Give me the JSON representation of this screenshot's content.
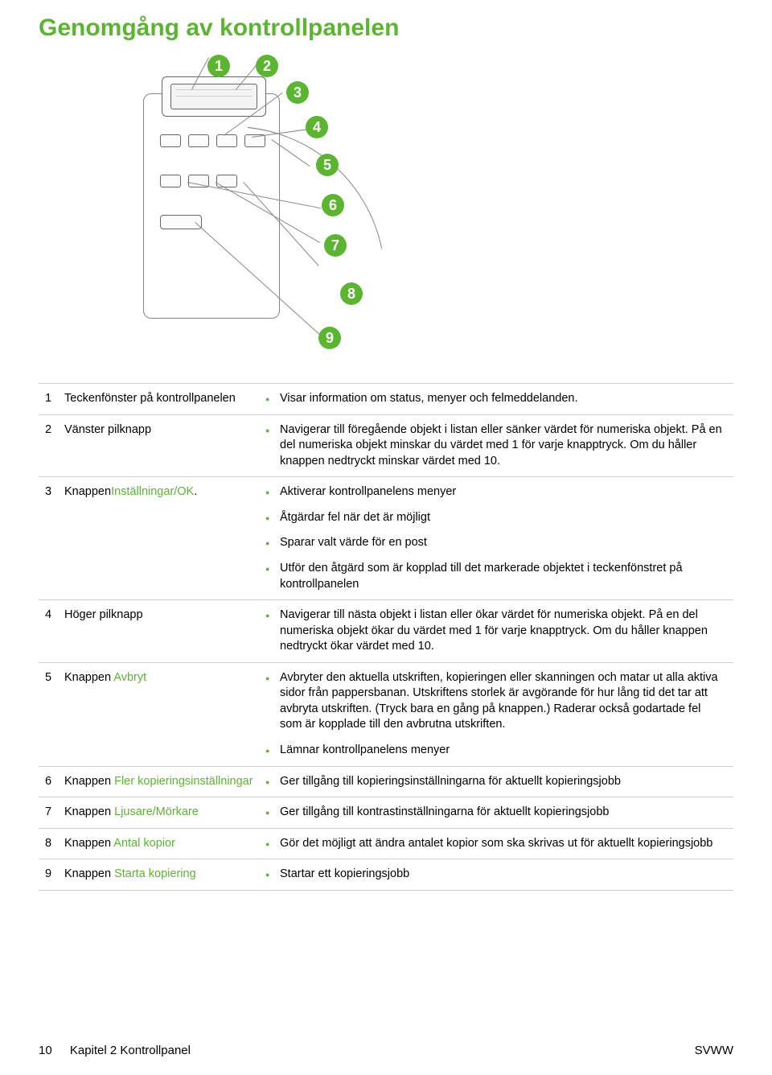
{
  "title": "Genomgång av kontrollpanelen",
  "title_color": "#5cb531",
  "accent_color": "#5cb531",
  "border_color": "#cfcfcf",
  "diagram": {
    "badges": [
      "1",
      "2",
      "3",
      "4",
      "5",
      "6",
      "7",
      "8",
      "9"
    ]
  },
  "rows": [
    {
      "num": "1",
      "label_plain": "Teckenfönster på kontrollpanelen",
      "label_colored": "",
      "bullets": [
        "Visar information om status, menyer och felmeddelanden."
      ]
    },
    {
      "num": "2",
      "label_plain": "Vänster pilknapp",
      "label_colored": "",
      "bullets": [
        "Navigerar till föregående objekt i listan eller sänker värdet för numeriska objekt. På en del numeriska objekt minskar du värdet med 1 för varje knapptryck. Om du håller knappen nedtryckt minskar värdet med 10."
      ]
    },
    {
      "num": "3",
      "label_plain": "Knappen",
      "label_colored": "Inställningar/OK",
      "label_suffix": ".",
      "bullets": [
        "Aktiverar kontrollpanelens menyer",
        "Åtgärdar fel när det är möjligt",
        "Sparar valt värde för en post",
        "Utför den åtgärd som är kopplad till det markerade objektet i teckenfönstret på kontrollpanelen"
      ]
    },
    {
      "num": "4",
      "label_plain": "Höger pilknapp",
      "label_colored": "",
      "bullets": [
        "Navigerar till nästa objekt i listan eller ökar värdet för numeriska objekt. På en del numeriska objekt ökar du värdet med 1 för varje knapptryck. Om du håller knappen nedtryckt ökar värdet med 10."
      ]
    },
    {
      "num": "5",
      "label_plain": "Knappen ",
      "label_colored": "Avbryt",
      "bullets": [
        "Avbryter den aktuella utskriften, kopieringen eller skanningen och matar ut alla aktiva sidor från pappersbanan. Utskriftens storlek är avgörande för hur lång tid det tar att avbryta utskriften. (Tryck bara en gång på knappen.) Raderar också godartade fel som är kopplade till den avbrutna utskriften.",
        "Lämnar kontrollpanelens menyer"
      ]
    },
    {
      "num": "6",
      "label_plain": "Knappen ",
      "label_colored": "Fler kopieringsinställningar",
      "bullets": [
        "Ger tillgång till kopieringsinställningarna för aktuellt kopieringsjobb"
      ]
    },
    {
      "num": "7",
      "label_plain": "Knappen ",
      "label_colored": "Ljusare/Mörkare",
      "bullets": [
        "Ger tillgång till kontrastinställningarna för aktuellt kopieringsjobb"
      ]
    },
    {
      "num": "8",
      "label_plain": "Knappen ",
      "label_colored": "Antal kopior",
      "bullets": [
        "Gör det möjligt att ändra antalet kopior som ska skrivas ut för aktuellt kopieringsjobb"
      ]
    },
    {
      "num": "9",
      "label_plain": "Knappen ",
      "label_colored": "Starta kopiering",
      "bullets": [
        "Startar ett kopieringsjobb"
      ]
    }
  ],
  "footer": {
    "page_num": "10",
    "chapter": "Kapitel 2   Kontrollpanel",
    "right": "SVWW"
  }
}
